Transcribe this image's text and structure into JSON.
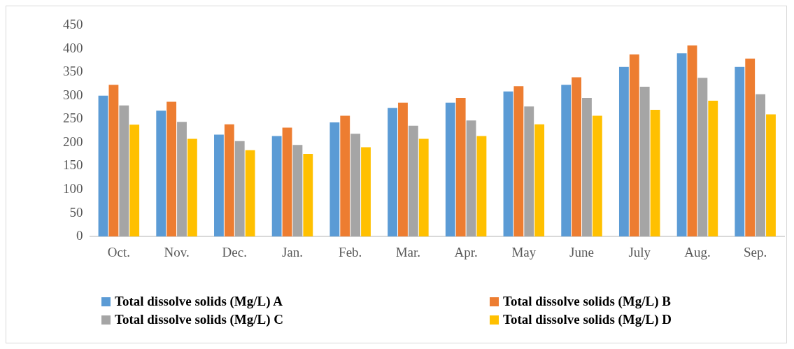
{
  "chart_data": {
    "type": "bar",
    "categories": [
      "Oct.",
      "Nov.",
      "Dec.",
      "Jan.",
      "Feb.",
      "Mar.",
      "Apr.",
      "May",
      "June",
      "July",
      "Aug.",
      "Sep."
    ],
    "series": [
      {
        "name": "Total dissolve solids (Mg/L) A",
        "color": "#5b9bd5",
        "values": [
          300,
          268,
          217,
          214,
          243,
          274,
          285,
          309,
          323,
          361,
          390,
          361
        ]
      },
      {
        "name": "Total dissolve solids (Mg/L) B",
        "color": "#ed7d31",
        "values": [
          323,
          287,
          239,
          232,
          257,
          285,
          295,
          320,
          339,
          388,
          407,
          379
        ]
      },
      {
        "name": "Total dissolve solids (Mg/L) C",
        "color": "#a5a5a5",
        "values": [
          279,
          244,
          203,
          195,
          219,
          236,
          247,
          277,
          295,
          319,
          338,
          303
        ]
      },
      {
        "name": "Total dissolve solids (Mg/L) D",
        "color": "#ffc000",
        "values": [
          238,
          208,
          184,
          176,
          190,
          208,
          214,
          239,
          257,
          270,
          289,
          260
        ]
      }
    ],
    "ylim": [
      0,
      450
    ],
    "yticks": [
      0,
      50,
      100,
      150,
      200,
      250,
      300,
      350,
      400,
      450
    ],
    "grid": false,
    "legend": "bottom"
  }
}
